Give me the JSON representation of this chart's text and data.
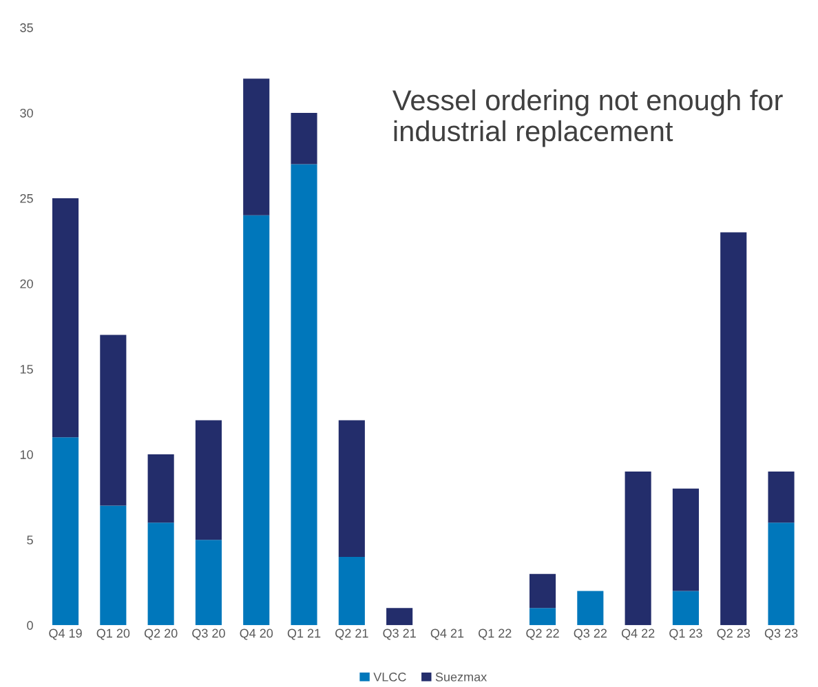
{
  "chart_data": {
    "type": "bar",
    "stacked": true,
    "categories": [
      "Q4 19",
      "Q1 20",
      "Q2 20",
      "Q3 20",
      "Q4 20",
      "Q1 21",
      "Q2 21",
      "Q3 21",
      "Q4 21",
      "Q1 22",
      "Q2 22",
      "Q3 22",
      "Q4 22",
      "Q1 23",
      "Q2 23",
      "Q3 23"
    ],
    "series": [
      {
        "name": "VLCC",
        "color": "#0077bb",
        "values": [
          11,
          7,
          6,
          5,
          24,
          27,
          4,
          0,
          0,
          0,
          1,
          2,
          0,
          2,
          0,
          6
        ]
      },
      {
        "name": "Suezmax",
        "color": "#232d6b",
        "values": [
          14,
          10,
          4,
          7,
          8,
          3,
          8,
          1,
          0,
          0,
          2,
          0,
          9,
          6,
          23,
          3
        ]
      }
    ],
    "ylim": [
      0,
      35
    ],
    "yticks": [
      0,
      5,
      10,
      15,
      20,
      25,
      30,
      35
    ],
    "annotations": [
      "Vessel ordering not enough for industrial replacement"
    ],
    "legend": "bottom",
    "grid": false
  }
}
